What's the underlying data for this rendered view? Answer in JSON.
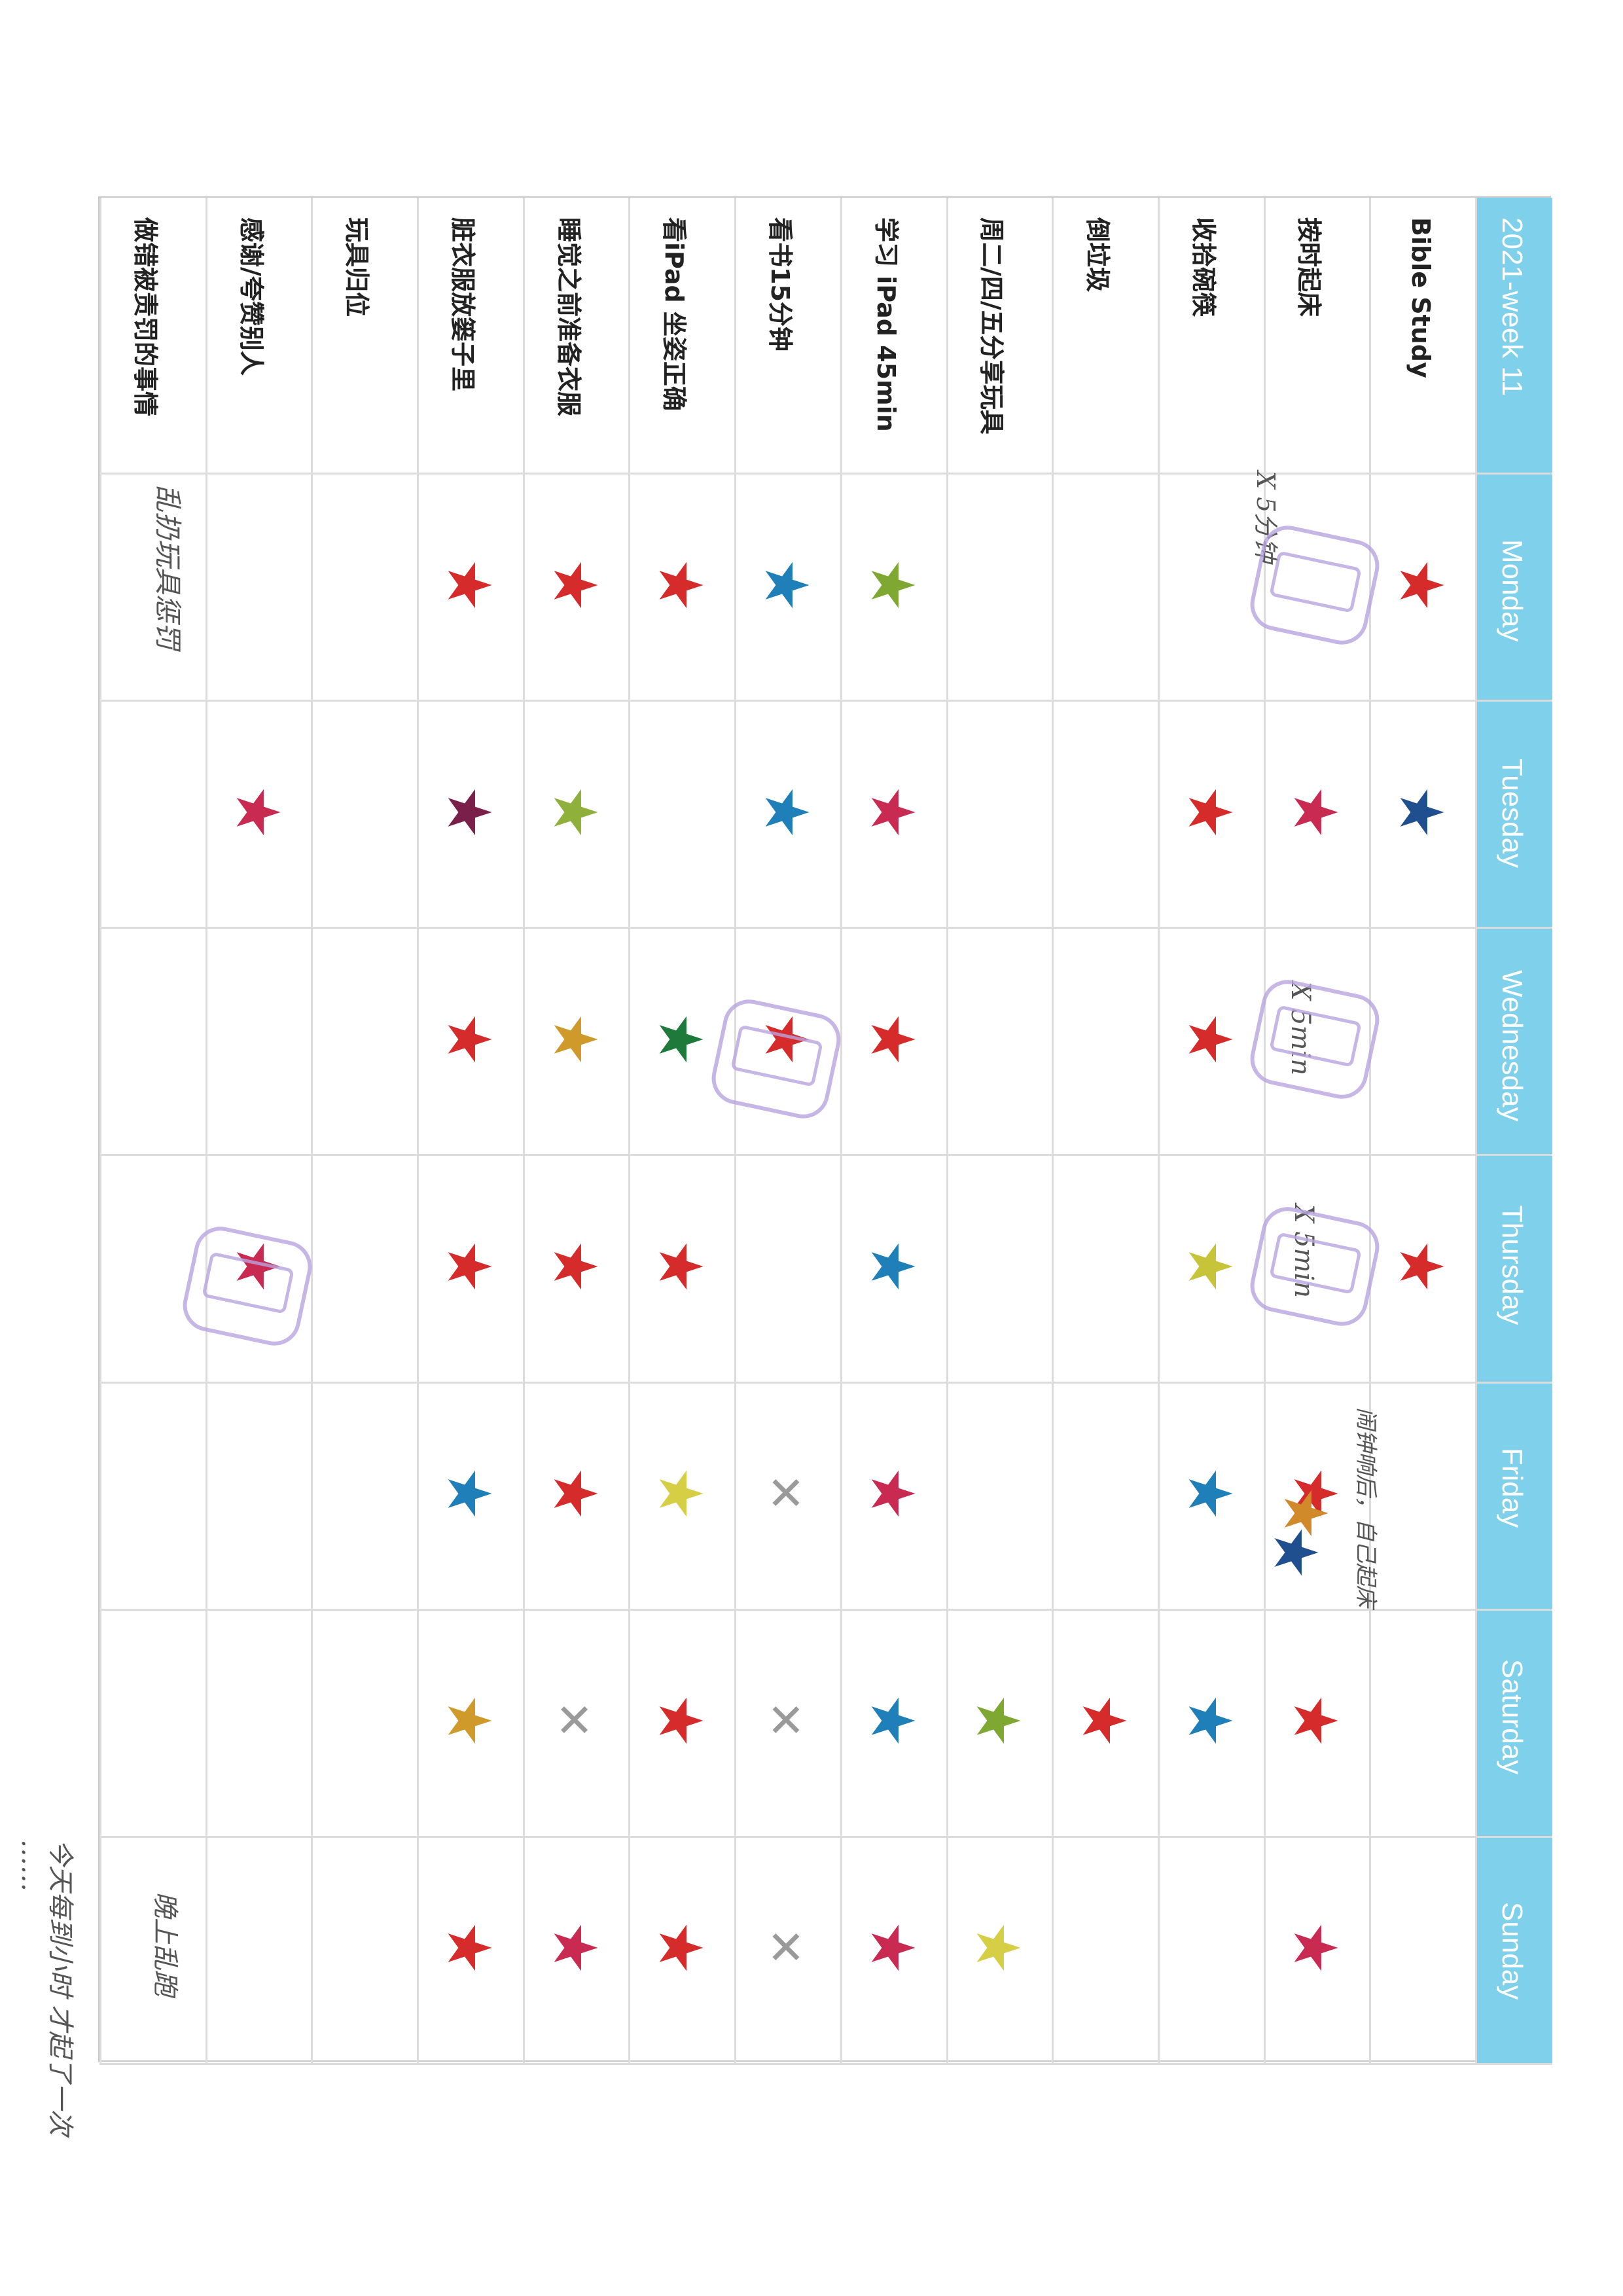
{
  "chart": {
    "title": "2021-week 11",
    "days": [
      "Monday",
      "Tuesday",
      "Wednesday",
      "Thursday",
      "Friday",
      "Saturday",
      "Sunday"
    ],
    "tasks": [
      "Bible Study",
      "按时起床",
      "收拾碗筷",
      "倒垃圾",
      "周二/四/五分享玩具",
      "学习 iPad 45min",
      "看书15分钟",
      "看iPad 坐姿正确",
      "睡觉之前准备衣服",
      "脏衣服放篓子里",
      "玩具归位",
      "感谢/夸赞别人",
      "做错被责罚的事情"
    ]
  },
  "marks": [
    {
      "task": 0,
      "day": 0,
      "type": "star",
      "color": "#d62b2b"
    },
    {
      "task": 0,
      "day": 1,
      "type": "star",
      "color": "#1f4f8f"
    },
    {
      "task": 0,
      "day": 3,
      "type": "star",
      "color": "#d62b2b"
    },
    {
      "task": 1,
      "day": 0,
      "type": "stamp"
    },
    {
      "task": 1,
      "day": 1,
      "type": "star",
      "color": "#c92a52"
    },
    {
      "task": 1,
      "day": 2,
      "type": "stamp"
    },
    {
      "task": 1,
      "day": 3,
      "type": "stamp"
    },
    {
      "task": 1,
      "day": 4,
      "type": "star",
      "color": "#d62b2b"
    },
    {
      "task": 1,
      "day": 4,
      "type": "star",
      "color": "#d08a2a"
    },
    {
      "task": 1,
      "day": 4,
      "type": "star",
      "color": "#1f4f8f"
    },
    {
      "task": 1,
      "day": 5,
      "type": "star",
      "color": "#d62b2b"
    },
    {
      "task": 1,
      "day": 6,
      "type": "star",
      "color": "#c92a52"
    },
    {
      "task": 2,
      "day": 1,
      "type": "star",
      "color": "#d62b2b"
    },
    {
      "task": 2,
      "day": 2,
      "type": "star",
      "color": "#d62b2b"
    },
    {
      "task": 2,
      "day": 3,
      "type": "star",
      "color": "#c8c43a"
    },
    {
      "task": 2,
      "day": 4,
      "type": "star",
      "color": "#1f7fb8"
    },
    {
      "task": 2,
      "day": 5,
      "type": "star",
      "color": "#1f7fb8"
    },
    {
      "task": 3,
      "day": 5,
      "type": "star",
      "color": "#d62b2b"
    },
    {
      "task": 4,
      "day": 5,
      "type": "star",
      "color": "#7fa832"
    },
    {
      "task": 4,
      "day": 6,
      "type": "star",
      "color": "#d6cf45"
    },
    {
      "task": 5,
      "day": 0,
      "type": "star",
      "color": "#7fa832"
    },
    {
      "task": 5,
      "day": 1,
      "type": "star",
      "color": "#c92a52"
    },
    {
      "task": 5,
      "day": 2,
      "type": "star",
      "color": "#d62b2b"
    },
    {
      "task": 5,
      "day": 3,
      "type": "star",
      "color": "#1f7fb8"
    },
    {
      "task": 5,
      "day": 4,
      "type": "star",
      "color": "#c92a52"
    },
    {
      "task": 5,
      "day": 5,
      "type": "star",
      "color": "#1f7fb8"
    },
    {
      "task": 5,
      "day": 6,
      "type": "star",
      "color": "#c92a52"
    },
    {
      "task": 6,
      "day": 0,
      "type": "star",
      "color": "#1f7fb8"
    },
    {
      "task": 6,
      "day": 1,
      "type": "star",
      "color": "#1f7fb8"
    },
    {
      "task": 6,
      "day": 2,
      "type": "star",
      "color": "#d62b2b"
    },
    {
      "task": 6,
      "day": 2,
      "type": "stamp"
    },
    {
      "task": 6,
      "day": 4,
      "type": "cross"
    },
    {
      "task": 6,
      "day": 5,
      "type": "cross"
    },
    {
      "task": 6,
      "day": 6,
      "type": "cross"
    },
    {
      "task": 7,
      "day": 0,
      "type": "star",
      "color": "#d62b2b"
    },
    {
      "task": 7,
      "day": 2,
      "type": "star",
      "color": "#1e7a3a"
    },
    {
      "task": 7,
      "day": 3,
      "type": "star",
      "color": "#d62b2b"
    },
    {
      "task": 7,
      "day": 4,
      "type": "star",
      "color": "#d6cf45"
    },
    {
      "task": 7,
      "day": 5,
      "type": "star",
      "color": "#d62b2b"
    },
    {
      "task": 7,
      "day": 6,
      "type": "star",
      "color": "#d62b2b"
    },
    {
      "task": 8,
      "day": 0,
      "type": "star",
      "color": "#d62b2b"
    },
    {
      "task": 8,
      "day": 1,
      "type": "star",
      "color": "#8fb03a"
    },
    {
      "task": 8,
      "day": 2,
      "type": "star",
      "color": "#d09a2a"
    },
    {
      "task": 8,
      "day": 3,
      "type": "star",
      "color": "#d62b2b"
    },
    {
      "task": 8,
      "day": 4,
      "type": "star",
      "color": "#d62b2b"
    },
    {
      "task": 8,
      "day": 5,
      "type": "cross"
    },
    {
      "task": 8,
      "day": 6,
      "type": "star",
      "color": "#c92a52"
    },
    {
      "task": 9,
      "day": 0,
      "type": "star",
      "color": "#d62b2b"
    },
    {
      "task": 9,
      "day": 1,
      "type": "star",
      "color": "#7a1f4a"
    },
    {
      "task": 9,
      "day": 2,
      "type": "star",
      "color": "#d62b2b"
    },
    {
      "task": 9,
      "day": 3,
      "type": "star",
      "color": "#d62b2b"
    },
    {
      "task": 9,
      "day": 4,
      "type": "star",
      "color": "#1f7fb8"
    },
    {
      "task": 9,
      "day": 5,
      "type": "star",
      "color": "#d09a2a"
    },
    {
      "task": 9,
      "day": 6,
      "type": "star",
      "color": "#d62b2b"
    },
    {
      "task": 11,
      "day": 1,
      "type": "star",
      "color": "#c92a52"
    },
    {
      "task": 11,
      "day": 3,
      "type": "star",
      "color": "#c92a52"
    },
    {
      "task": 11,
      "day": 3,
      "type": "stamp"
    }
  ],
  "notes": {
    "monday_wake": "X 5分钟",
    "wednesday_wake": "X 5min",
    "thursday_wake": "X 5min",
    "friday_wake": "闹钟响后，自己起床",
    "monday_punished": "乱扔玩具惩罚",
    "sunday_punished": "晚上乱跑",
    "bottom_note_1": "今天每到小时 才起了一次",
    "bottom_note_2": "……"
  }
}
